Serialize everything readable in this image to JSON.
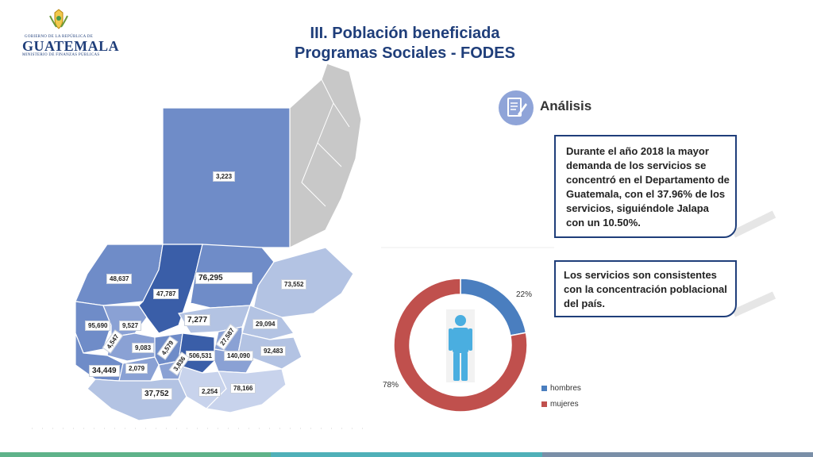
{
  "logo": {
    "line1": "GOBIERNO DE LA REPÚBLICA DE",
    "main": "GUATEMALA",
    "line2": "MINISTERIO DE FINANZAS PÚBLICAS"
  },
  "title": {
    "line1": "III. Población beneficiada",
    "line2": "Programas Sociales - FODES"
  },
  "map": {
    "labels": [
      {
        "key": "peten",
        "value": "3,223"
      },
      {
        "key": "huehuetenango",
        "value": "48,637"
      },
      {
        "key": "quiche",
        "value": "47,787"
      },
      {
        "key": "alta-verapaz",
        "value": "76,295"
      },
      {
        "key": "izabal",
        "value": "73,552"
      },
      {
        "key": "san-marcos",
        "value": "95,690"
      },
      {
        "key": "quetzaltenango",
        "value": "9,527"
      },
      {
        "key": "baja-verapaz",
        "value": "7,277"
      },
      {
        "key": "zacapa",
        "value": "29,094"
      },
      {
        "key": "el-progreso",
        "value": "27,587"
      },
      {
        "key": "totonicapan",
        "value": "4,547"
      },
      {
        "key": "solola",
        "value": "9,083"
      },
      {
        "key": "chimaltenango",
        "value": "4,579"
      },
      {
        "key": "guatemala",
        "value": "506,531"
      },
      {
        "key": "jalapa",
        "value": "140,090"
      },
      {
        "key": "chiquimula",
        "value": "92,483"
      },
      {
        "key": "sacatepequez",
        "value": "3,836"
      },
      {
        "key": "retalhuleu",
        "value": "34,449"
      },
      {
        "key": "suchitepequez",
        "value": "2,079"
      },
      {
        "key": "jutiapa",
        "value": "78,166"
      },
      {
        "key": "santa-rosa",
        "value": "2,254"
      },
      {
        "key": "escuintla",
        "value": "37,752"
      }
    ]
  },
  "analysis": {
    "title": "Análisis",
    "card1": "Durante el año 2018 la mayor demanda de los servicios se concentró en el Departamento de Guatemala, con el 37.96% de los servicios, siguiéndole Jalapa con un 10.50%.",
    "card2": "Los servicios son consistentes con la concentración poblacional del país."
  },
  "chart_data": {
    "type": "pie",
    "variant": "donut",
    "categories": [
      "hombres",
      "mujeres"
    ],
    "values": [
      22,
      78
    ],
    "value_labels": [
      "22%",
      "78%"
    ],
    "colors": [
      "#4a7ebf",
      "#c0504d"
    ],
    "legend_placement": "bottom-right"
  },
  "colors": {
    "title": "#1f3e7a",
    "card_border": "#1f3e7a",
    "figure": "#4aaee0",
    "map_dark": "#3a5ea8",
    "map_mid": "#6f8cc8",
    "map_light": "#b3c3e3",
    "belize": "#c8c8c8"
  }
}
